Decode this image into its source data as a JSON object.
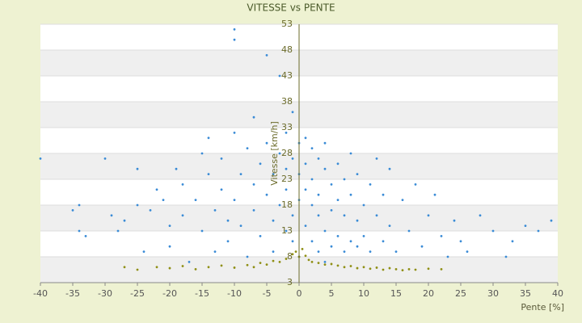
{
  "chart_data": {
    "type": "scatter",
    "title": "VITESSE vs PENTE",
    "x_label": "Pente [%]",
    "y_label": "Vitesse [km/h]",
    "xlim": [
      -40,
      40
    ],
    "xticks": [
      -40,
      -35,
      -30,
      -25,
      -20,
      -15,
      -10,
      -5,
      0,
      5,
      10,
      15,
      20,
      25,
      30,
      35,
      40
    ],
    "ylim": [
      3,
      53
    ],
    "yticks": [
      3,
      8,
      13,
      18,
      23,
      28,
      33,
      38,
      43,
      48,
      53
    ],
    "grid": true,
    "series": [
      {
        "color": "#3a8bd6",
        "x": [
          -40,
          -35,
          -34,
          -34,
          -33,
          -30,
          -29,
          -28,
          -27,
          -25,
          -25,
          -24,
          -23,
          -22,
          -21,
          -20,
          -20,
          -19,
          -18,
          -18,
          -17,
          -16,
          -15,
          -15,
          -14,
          -14,
          -13,
          -13,
          -12,
          -12,
          -11,
          -11,
          -10,
          -10,
          -10,
          -10,
          -9,
          -9,
          -8,
          -8,
          -7,
          -7,
          -7,
          -6,
          -6,
          -5,
          -5,
          -5,
          -4,
          -4,
          -4,
          -3,
          -3,
          -3,
          -2,
          -2,
          -2,
          -2,
          -1,
          -1,
          -1,
          -1,
          0,
          0,
          0,
          0,
          1,
          1,
          1,
          1,
          2,
          2,
          2,
          2,
          3,
          3,
          3,
          3,
          4,
          4,
          4,
          4,
          5,
          5,
          5,
          6,
          6,
          6,
          7,
          7,
          7,
          8,
          8,
          8,
          9,
          9,
          9,
          10,
          10,
          11,
          11,
          12,
          12,
          13,
          13,
          14,
          14,
          15,
          16,
          17,
          18,
          19,
          20,
          21,
          22,
          23,
          24,
          25,
          26,
          28,
          30,
          32,
          33,
          35,
          37,
          39
        ],
        "values": [
          27,
          17,
          18,
          13,
          12,
          27,
          16,
          13,
          15,
          25,
          18,
          9,
          17,
          21,
          19,
          14,
          10,
          25,
          22,
          16,
          7,
          19,
          13,
          28,
          31,
          24,
          17,
          9,
          21,
          27,
          15,
          11,
          32,
          52,
          50,
          19,
          24,
          14,
          29,
          8,
          22,
          35,
          17,
          26,
          12,
          47,
          20,
          30,
          15,
          24,
          9,
          28,
          43,
          18,
          25,
          32,
          13,
          21,
          27,
          16,
          36,
          11,
          24,
          30,
          19,
          8,
          26,
          14,
          21,
          31,
          18,
          29,
          11,
          23,
          27,
          16,
          9,
          20,
          25,
          13,
          30,
          7,
          22,
          17,
          10,
          26,
          19,
          12,
          23,
          9,
          16,
          20,
          11,
          28,
          15,
          24,
          10,
          18,
          12,
          22,
          9,
          16,
          27,
          11,
          20,
          14,
          25,
          9,
          19,
          13,
          22,
          10,
          16,
          20,
          12,
          8,
          15,
          11,
          9,
          16,
          13,
          8,
          11,
          14,
          13,
          15
        ]
      },
      {
        "color": "#8f8f14",
        "x": [
          -27,
          -25,
          -22,
          -20,
          -18,
          -16,
          -14,
          -12,
          -10,
          -8,
          -7,
          -6,
          -5,
          -4,
          -3,
          -2,
          -1,
          -0.5,
          0,
          0.5,
          1,
          1.5,
          2,
          3,
          4,
          5,
          6,
          7,
          8,
          9,
          10,
          11,
          12,
          13,
          14,
          15,
          16,
          17,
          18,
          20,
          22
        ],
        "values": [
          6,
          5.5,
          6,
          5.8,
          6.2,
          5.6,
          6,
          6.3,
          5.9,
          6.4,
          6,
          6.8,
          6.5,
          7.2,
          7,
          7.6,
          8.5,
          9,
          8,
          9.5,
          8.2,
          7.4,
          7,
          6.8,
          6.5,
          6.6,
          6.3,
          6,
          6.2,
          5.8,
          6,
          5.7,
          5.9,
          5.5,
          5.8,
          5.6,
          5.4,
          5.6,
          5.5,
          5.7,
          5.6
        ]
      }
    ]
  }
}
